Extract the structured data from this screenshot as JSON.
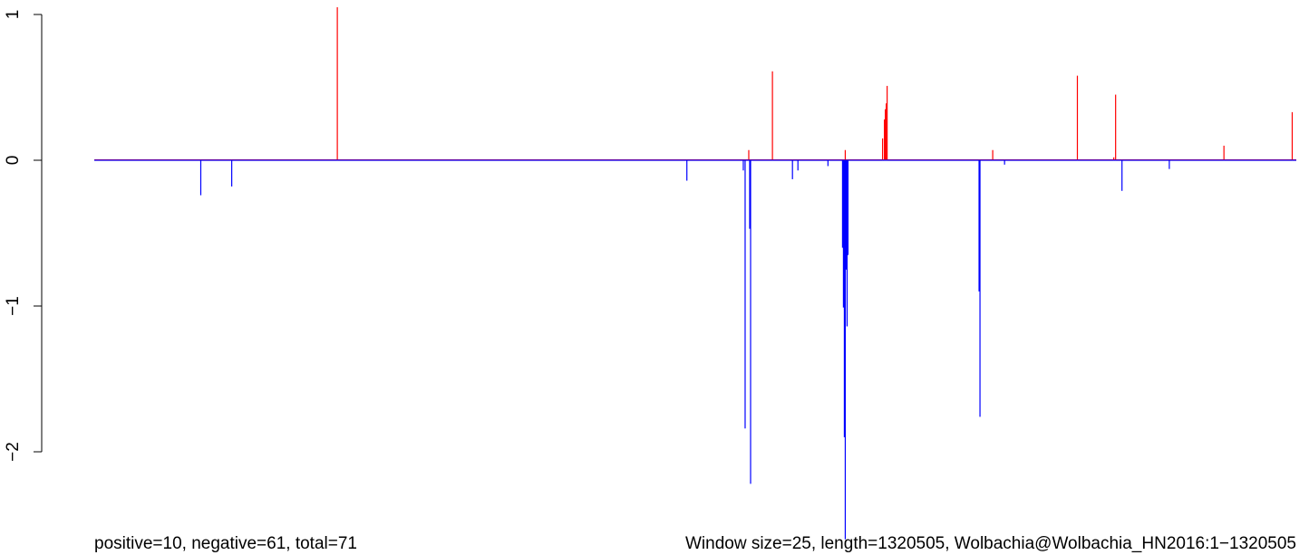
{
  "chart_data": {
    "type": "bar",
    "title": "",
    "xlabel": "",
    "ylabel": "",
    "ylim": [
      -2.6,
      1.05
    ],
    "xlim": [
      1,
      1320505
    ],
    "yticks": [
      {
        "value": 1,
        "label": "1"
      },
      {
        "value": 0,
        "label": "0"
      },
      {
        "value": -1,
        "label": "−1"
      },
      {
        "value": -2,
        "label": "−2"
      }
    ],
    "grid": false,
    "legend": "none",
    "colors": {
      "positive": "#ff0000",
      "negative": "#0000ff",
      "axis": "#000000"
    },
    "baseline": 0,
    "series": [
      {
        "sign": "positive",
        "points": [
          {
            "x": 267000,
            "y": 1.05
          },
          {
            "x": 719000,
            "y": 0.07
          },
          {
            "x": 745000,
            "y": 0.61
          },
          {
            "x": 825000,
            "y": 0.07
          },
          {
            "x": 866000,
            "y": 0.15
          },
          {
            "x": 868000,
            "y": 0.28
          },
          {
            "x": 869000,
            "y": 0.35
          },
          {
            "x": 870000,
            "y": 0.39
          },
          {
            "x": 871000,
            "y": 0.51
          },
          {
            "x": 987000,
            "y": 0.07
          },
          {
            "x": 1080000,
            "y": 0.58
          },
          {
            "x": 1120000,
            "y": 0.02
          },
          {
            "x": 1122000,
            "y": 0.45
          },
          {
            "x": 1241000,
            "y": 0.1
          },
          {
            "x": 1316000,
            "y": 0.33
          }
        ]
      },
      {
        "sign": "negative",
        "points": [
          {
            "x": 117000,
            "y": -0.24
          },
          {
            "x": 151000,
            "y": -0.18
          },
          {
            "x": 651000,
            "y": -0.14
          },
          {
            "x": 713000,
            "y": -0.07
          },
          {
            "x": 715000,
            "y": -1.84
          },
          {
            "x": 720000,
            "y": -0.47
          },
          {
            "x": 721000,
            "y": -2.22
          },
          {
            "x": 767000,
            "y": -0.13
          },
          {
            "x": 773000,
            "y": -0.07
          },
          {
            "x": 806000,
            "y": -0.04
          },
          {
            "x": 822000,
            "y": -0.6
          },
          {
            "x": 823000,
            "y": -1.01
          },
          {
            "x": 824000,
            "y": -1.9
          },
          {
            "x": 825000,
            "y": -2.6
          },
          {
            "x": 826000,
            "y": -0.75
          },
          {
            "x": 827000,
            "y": -1.14
          },
          {
            "x": 828000,
            "y": -0.65
          },
          {
            "x": 972000,
            "y": -0.9
          },
          {
            "x": 973000,
            "y": -1.76
          },
          {
            "x": 1000000,
            "y": -0.03
          },
          {
            "x": 1129000,
            "y": -0.21
          },
          {
            "x": 1181000,
            "y": -0.06
          }
        ]
      }
    ]
  },
  "footer": {
    "left_text": "positive=10, negative=61, total=71",
    "right_text": "Window size=25, length=1320505, Wolbachia@Wolbachia_HN2016:1−1320505"
  }
}
